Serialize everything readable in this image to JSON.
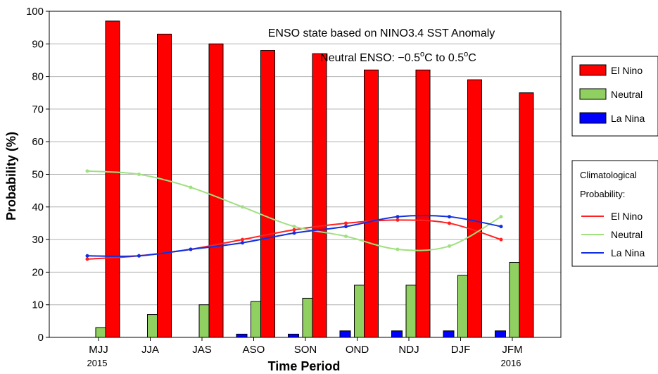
{
  "chart_data": {
    "type": "bar",
    "categories": [
      "MJJ",
      "JJA",
      "JAS",
      "ASO",
      "SON",
      "OND",
      "NDJ",
      "DJF",
      "JFM"
    ],
    "year_labels": [
      {
        "label": "2015",
        "category_index": 0
      },
      {
        "label": "2016",
        "category_index": 8
      }
    ],
    "series": [
      {
        "name": "La Nina",
        "color": "#0000ff",
        "values": [
          0,
          0,
          0,
          1,
          1,
          2,
          2,
          2,
          2
        ]
      },
      {
        "name": "Neutral",
        "color": "#90d060",
        "values": [
          3,
          7,
          10,
          11,
          12,
          16,
          16,
          19,
          23
        ]
      },
      {
        "name": "El Nino",
        "color": "#ff0000",
        "values": [
          97,
          93,
          90,
          88,
          87,
          82,
          82,
          79,
          75
        ]
      }
    ],
    "climatology_title": "Climatological",
    "climatology_subtitle": "Probability:",
    "climatology": [
      {
        "name": "El Nino",
        "color": "#ff2020",
        "values": [
          24,
          25,
          27,
          30,
          33,
          35,
          36,
          35,
          30
        ]
      },
      {
        "name": "Neutral",
        "color": "#a0e080",
        "values": [
          51,
          50,
          46,
          40,
          34,
          31,
          27,
          28,
          37
        ]
      },
      {
        "name": "La Nina",
        "color": "#1030e0",
        "values": [
          25,
          25,
          27,
          29,
          32,
          34,
          37,
          37,
          34
        ]
      }
    ],
    "annotation_line1": "ENSO state based on NINO3.4 SST Anomaly",
    "annotation_line2_prefix": "Neutral ENSO: −0.5",
    "annotation_line2_mid": "C to 0.5",
    "annotation_line2_suffix": "C",
    "annotation_degree": "o",
    "xlabel": "Time Period",
    "ylabel": "Probability (%)",
    "ylim": [
      0,
      100
    ],
    "yticks": [
      0,
      10,
      20,
      30,
      40,
      50,
      60,
      70,
      80,
      90,
      100
    ],
    "grid": "horizontal",
    "legend_position": "right"
  }
}
